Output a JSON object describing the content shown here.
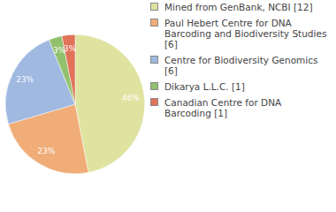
{
  "chart_data": {
    "type": "pie",
    "categories": [
      "Mined from GenBank, NCBI [12]",
      "Paul Hebert Centre for DNA Barcoding and Biodiversity Studies [6]",
      "Centre for Biodiversity Genomics [6]",
      "Dikarya L.L.C. [1]",
      "Canadian Centre for DNA Barcoding [1]"
    ],
    "values": [
      46,
      23,
      23,
      3,
      3
    ],
    "value_labels": [
      "46%",
      "23%",
      "23%",
      "3%",
      "3%"
    ],
    "colors": [
      "#dfe3a0",
      "#f0ad78",
      "#9fb9e0",
      "#92c16e",
      "#e0735a"
    ],
    "data_labels": true,
    "legend": "right"
  }
}
